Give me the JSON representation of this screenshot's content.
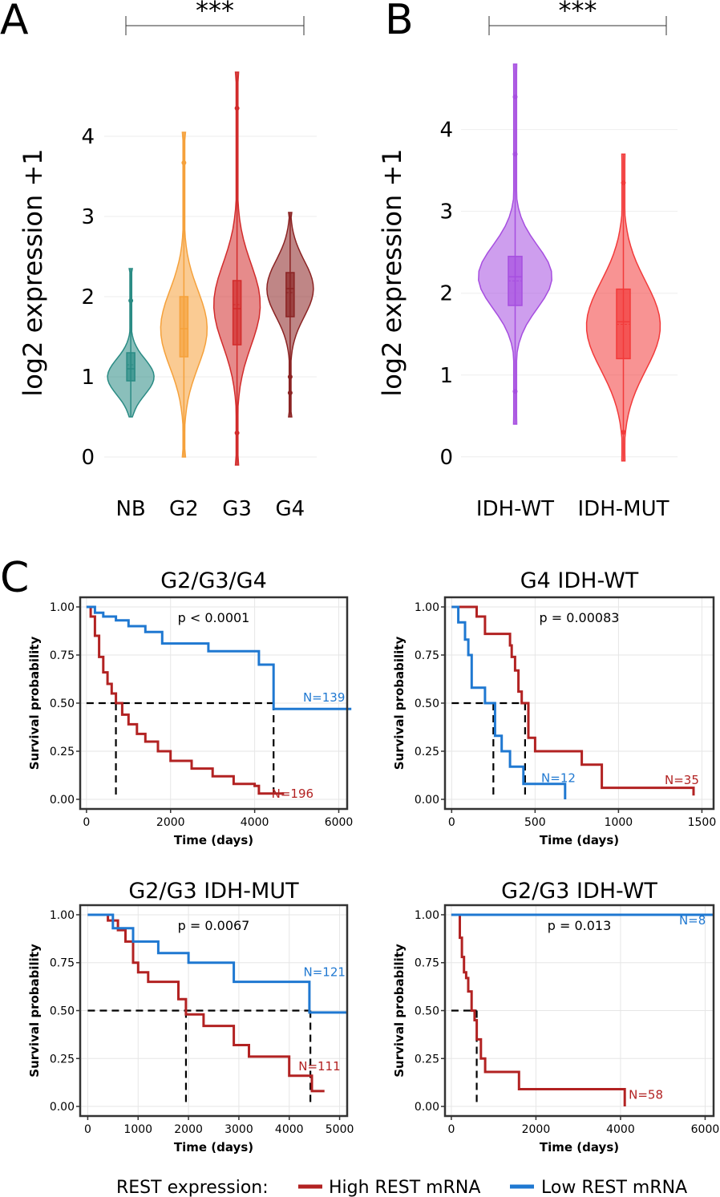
{
  "panels": {
    "a_letter": "A",
    "b_letter": "B",
    "c_letter": "C"
  },
  "legend": {
    "title": "REST expression:",
    "items": [
      {
        "label": "High REST mRNA",
        "color": "#b22222"
      },
      {
        "label": "Low REST mRNA",
        "color": "#1f78d1"
      }
    ]
  },
  "chart_data": [
    {
      "type": "violin",
      "id": "A",
      "ylabel": "log2 expression +1",
      "ylim": [
        -0.1,
        4.9
      ],
      "yticks": [
        "0",
        "1",
        "2",
        "3",
        "4"
      ],
      "categories": [
        "NB",
        "G2",
        "G3",
        "G4"
      ],
      "colors": [
        "#2a8b84",
        "#f5a13b",
        "#d22b2b",
        "#8b2323"
      ],
      "significance": "***",
      "groups": [
        {
          "name": "NB",
          "min": 0.5,
          "max": 2.35,
          "q1": 0.95,
          "median": 1.1,
          "q3": 1.3,
          "mean": 1.15,
          "peak": 1.0,
          "outliers": [
            1.95
          ]
        },
        {
          "name": "G2",
          "min": 0.0,
          "max": 4.05,
          "q1": 1.25,
          "median": 1.6,
          "q3": 2.0,
          "mean": 1.6,
          "peak": 1.6,
          "outliers": [
            3.67
          ]
        },
        {
          "name": "G3",
          "min": -0.1,
          "max": 4.8,
          "q1": 1.4,
          "median": 1.85,
          "q3": 2.2,
          "mean": 1.9,
          "peak": 1.9,
          "outliers": [
            4.35,
            0.3
          ]
        },
        {
          "name": "G4",
          "min": 0.5,
          "max": 3.05,
          "q1": 1.75,
          "median": 2.1,
          "q3": 2.3,
          "mean": 2.05,
          "peak": 2.1,
          "outliers": [
            1.0,
            0.8
          ]
        }
      ]
    },
    {
      "type": "violin",
      "id": "B",
      "ylabel": "log2 expression +1",
      "ylim": [
        -0.1,
        4.8
      ],
      "yticks": [
        "0",
        "1",
        "2",
        "3",
        "4"
      ],
      "categories": [
        "IDH-WT",
        "IDH-MUT"
      ],
      "colors": [
        "#a64ee0",
        "#f23a3a"
      ],
      "significance": "***",
      "groups": [
        {
          "name": "IDH-WT",
          "min": 0.4,
          "max": 4.8,
          "q1": 1.85,
          "median": 2.2,
          "q3": 2.45,
          "mean": 2.15,
          "peak": 2.2,
          "outliers": [
            4.4,
            3.7,
            0.8
          ]
        },
        {
          "name": "IDH-MUT",
          "min": -0.05,
          "max": 3.7,
          "q1": 1.2,
          "median": 1.65,
          "q3": 2.05,
          "mean": 1.62,
          "peak": 1.6,
          "outliers": [
            3.35,
            0.3
          ]
        }
      ]
    },
    {
      "type": "step-line",
      "id": "C1",
      "title": "G2/G3/G4",
      "xlabel": "Time (days)",
      "ylabel": "Survival probability",
      "xlim": [
        -150,
        6200
      ],
      "ylim": [
        -0.05,
        1.05
      ],
      "xticks": [
        0,
        2000,
        4000,
        6000
      ],
      "xtick_labels": [
        "0",
        "2000",
        "4000",
        "6000"
      ],
      "yticks": [
        0,
        0.25,
        0.5,
        0.75,
        1
      ],
      "ytick_labels": [
        "0.00",
        "0.25",
        "0.50",
        "0.75",
        "1.00"
      ],
      "pvalue": "p < 0.0001",
      "medians": [
        700,
        4450
      ],
      "series": [
        {
          "name": "High REST mRNA",
          "label": "N=196",
          "label_x": 4900,
          "label_y": 0.03,
          "x": [
            0,
            100,
            200,
            300,
            400,
            500,
            600,
            700,
            850,
            1000,
            1200,
            1400,
            1700,
            2000,
            2500,
            3000,
            3500,
            4000,
            4100,
            4700
          ],
          "y": [
            1,
            0.95,
            0.85,
            0.74,
            0.66,
            0.6,
            0.55,
            0.5,
            0.44,
            0.39,
            0.34,
            0.3,
            0.25,
            0.2,
            0.16,
            0.12,
            0.08,
            0.07,
            0.03,
            0.03
          ]
        },
        {
          "name": "Low REST mRNA",
          "label": "N=139",
          "label_x": 5650,
          "label_y": 0.53,
          "x": [
            0,
            200,
            400,
            700,
            1000,
            1400,
            1800,
            2900,
            4100,
            4450,
            6300
          ],
          "y": [
            1,
            0.97,
            0.95,
            0.93,
            0.9,
            0.87,
            0.81,
            0.77,
            0.7,
            0.47,
            0.47
          ]
        }
      ]
    },
    {
      "type": "step-line",
      "id": "C2",
      "title": "G4 IDH-WT",
      "xlabel": "Time (days)",
      "ylabel": "Survival probability",
      "xlim": [
        -40,
        1570
      ],
      "ylim": [
        -0.05,
        1.05
      ],
      "xticks": [
        0,
        500,
        1000,
        1500
      ],
      "xtick_labels": [
        "0",
        "500",
        "1000",
        "1500"
      ],
      "yticks": [
        0,
        0.25,
        0.5,
        0.75,
        1
      ],
      "ytick_labels": [
        "0.00",
        "0.25",
        "0.50",
        "0.75",
        "1.00"
      ],
      "pvalue": "p = 0.00083",
      "medians": [
        250,
        440
      ],
      "series": [
        {
          "name": "High REST mRNA",
          "label": "N=35",
          "label_x": 1380,
          "label_y": 0.1,
          "x": [
            0,
            150,
            200,
            350,
            360,
            380,
            400,
            420,
            460,
            500,
            780,
            900,
            1450
          ],
          "y": [
            1,
            0.95,
            0.86,
            0.8,
            0.74,
            0.67,
            0.56,
            0.5,
            0.32,
            0.25,
            0.18,
            0.06,
            0.02
          ]
        },
        {
          "name": "Low REST mRNA",
          "label": "N=12",
          "label_x": 640,
          "label_y": 0.11,
          "x": [
            0,
            40,
            80,
            100,
            120,
            200,
            260,
            300,
            350,
            430,
            680
          ],
          "y": [
            1,
            0.92,
            0.83,
            0.75,
            0.58,
            0.5,
            0.33,
            0.25,
            0.17,
            0.08,
            0.0
          ]
        }
      ]
    },
    {
      "type": "step-line",
      "id": "C3",
      "title": "G2/G3 IDH-MUT",
      "xlabel": "Time (days)",
      "ylabel": "Survival probability",
      "xlim": [
        -150,
        5150
      ],
      "ylim": [
        -0.05,
        1.05
      ],
      "xticks": [
        0,
        1000,
        2000,
        3000,
        4000,
        5000
      ],
      "xtick_labels": [
        "0",
        "1000",
        "2000",
        "3000",
        "4000",
        "5000"
      ],
      "yticks": [
        0,
        0.25,
        0.5,
        0.75,
        1
      ],
      "ytick_labels": [
        "0.00",
        "0.25",
        "0.50",
        "0.75",
        "1.00"
      ],
      "pvalue": "p = 0.0067",
      "medians": [
        1950,
        4420
      ],
      "series": [
        {
          "name": "High REST mRNA",
          "label": "N=111",
          "label_x": 4600,
          "label_y": 0.21,
          "x": [
            0,
            400,
            600,
            750,
            900,
            1000,
            1200,
            1800,
            1950,
            2300,
            2900,
            3200,
            4000,
            4450,
            4700
          ],
          "y": [
            1,
            0.97,
            0.92,
            0.86,
            0.75,
            0.7,
            0.65,
            0.56,
            0.48,
            0.42,
            0.32,
            0.26,
            0.16,
            0.08,
            0.08
          ]
        },
        {
          "name": "Low REST mRNA",
          "label": "N=121",
          "label_x": 4700,
          "label_y": 0.7,
          "x": [
            0,
            500,
            900,
            1400,
            2000,
            2900,
            4400,
            5150
          ],
          "y": [
            1,
            0.93,
            0.86,
            0.8,
            0.75,
            0.65,
            0.49,
            0.49
          ]
        }
      ]
    },
    {
      "type": "step-line",
      "id": "C4",
      "title": "G2/G3 IDH-WT",
      "xlabel": "Time (days)",
      "ylabel": "Survival probability",
      "xlim": [
        -150,
        6200
      ],
      "ylim": [
        -0.05,
        1.05
      ],
      "xticks": [
        0,
        2000,
        4000,
        6000
      ],
      "xtick_labels": [
        "0",
        "2000",
        "4000",
        "6000"
      ],
      "yticks": [
        0,
        0.25,
        0.5,
        0.75,
        1
      ],
      "ytick_labels": [
        "0.00",
        "0.25",
        "0.50",
        "0.75",
        "1.00"
      ],
      "pvalue": "p = 0.013",
      "medians": [
        600
      ],
      "series": [
        {
          "name": "High REST mRNA",
          "label": "N=58",
          "label_x": 4600,
          "label_y": 0.06,
          "x": [
            0,
            200,
            250,
            300,
            350,
            400,
            480,
            550,
            600,
            700,
            800,
            1600,
            4100
          ],
          "y": [
            1,
            0.88,
            0.78,
            0.7,
            0.67,
            0.6,
            0.5,
            0.45,
            0.35,
            0.25,
            0.18,
            0.09,
            0.0
          ]
        },
        {
          "name": "Low REST mRNA",
          "label": "N=8",
          "label_x": 5700,
          "label_y": 0.97,
          "x": [
            0,
            6200
          ],
          "y": [
            1,
            1
          ]
        }
      ]
    }
  ]
}
